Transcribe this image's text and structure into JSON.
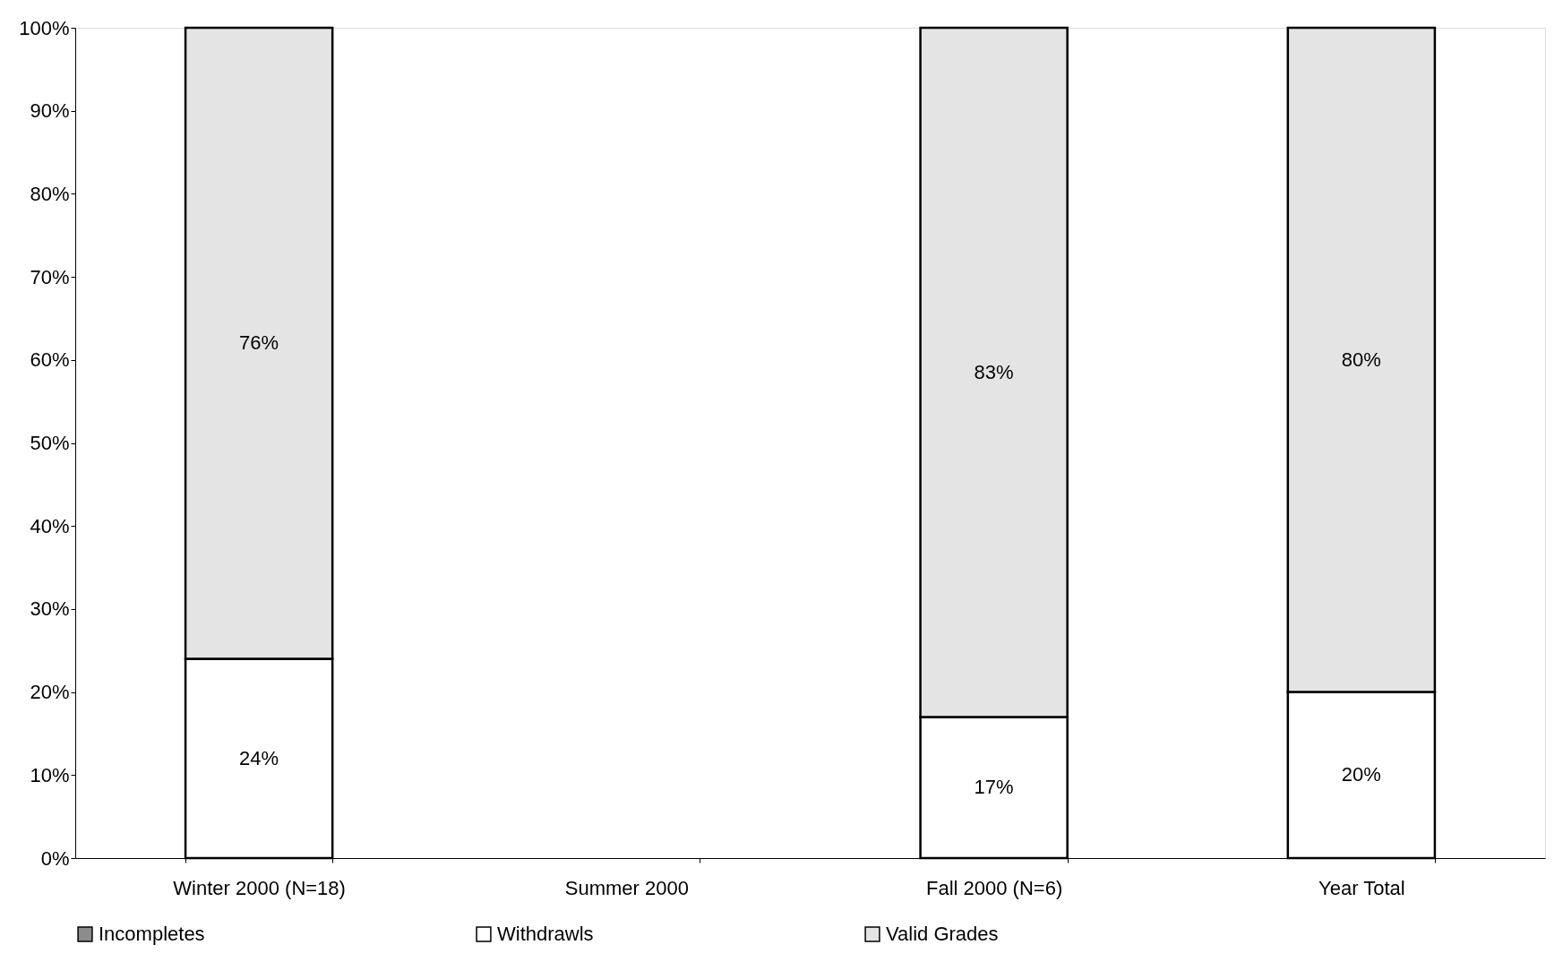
{
  "chart_data": {
    "type": "bar",
    "stacked": true,
    "legend": "bottom",
    "categories": [
      "Winter 2000 (N=18)",
      "Summer 2000",
      "Fall 2000 (N=6)",
      "Year Total"
    ],
    "ylim": [
      0,
      100
    ],
    "yticks": [
      {
        "value": 0,
        "label": "0%"
      },
      {
        "value": 10,
        "label": "10%"
      },
      {
        "value": 20,
        "label": "20%"
      },
      {
        "value": 30,
        "label": "30%"
      },
      {
        "value": 40,
        "label": "40%"
      },
      {
        "value": 50,
        "label": "50%"
      },
      {
        "value": 60,
        "label": "60%"
      },
      {
        "value": 70,
        "label": "70%"
      },
      {
        "value": 80,
        "label": "80%"
      },
      {
        "value": 90,
        "label": "90%"
      },
      {
        "value": 100,
        "label": "100%"
      }
    ],
    "series": [
      {
        "name": "Incompletes",
        "color": "#8c8c8c",
        "values": [
          null,
          null,
          null,
          null
        ]
      },
      {
        "name": "Withdrawls",
        "color": "#ffffff",
        "values": [
          24,
          null,
          17,
          20
        ],
        "value_labels": [
          "24%",
          null,
          "17%",
          "20%"
        ]
      },
      {
        "name": "Valid Grades",
        "color": "#e4e4e4",
        "values": [
          76,
          null,
          83,
          80
        ],
        "value_labels": [
          "76%",
          null,
          "83%",
          "80%"
        ]
      }
    ]
  }
}
